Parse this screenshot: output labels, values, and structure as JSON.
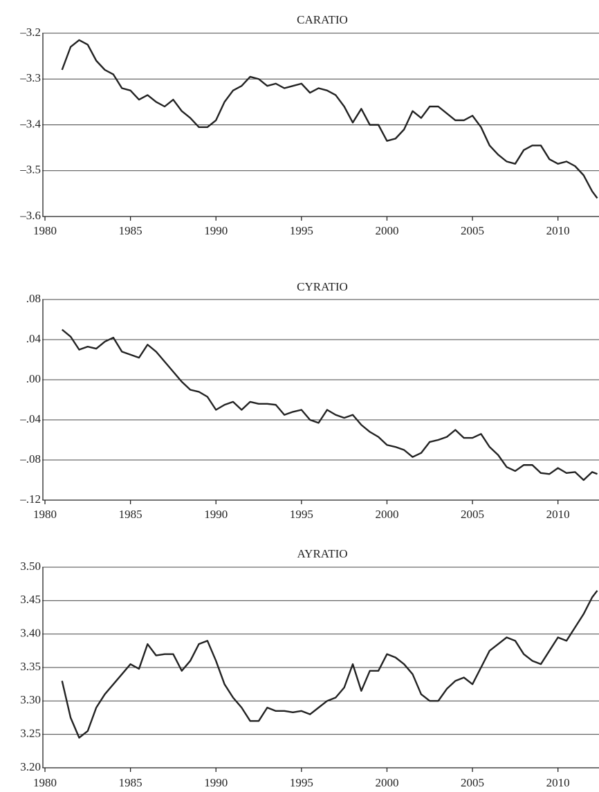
{
  "chart_data": [
    {
      "type": "line",
      "title": "CARATIO",
      "x": [
        1981,
        1981.5,
        1982,
        1982.5,
        1983,
        1983.5,
        1984,
        1984.5,
        1985,
        1985.5,
        1986,
        1986.5,
        1987,
        1987.5,
        1988,
        1988.5,
        1989,
        1989.5,
        1990,
        1990.5,
        1991,
        1991.5,
        1992,
        1992.5,
        1993,
        1993.5,
        1994,
        1994.5,
        1995,
        1995.5,
        1996,
        1996.5,
        1997,
        1997.5,
        1998,
        1998.5,
        1999,
        1999.5,
        2000,
        2000.5,
        2001,
        2001.5,
        2002,
        2002.5,
        2003,
        2003.5,
        2004,
        2004.5,
        2005,
        2005.5,
        2006,
        2006.5,
        2007,
        2007.5,
        2008,
        2008.5,
        2009,
        2009.5,
        2010,
        2010.5,
        2011,
        2011.5,
        2012,
        2012.3
      ],
      "values": [
        -3.28,
        -3.23,
        -3.215,
        -3.225,
        -3.26,
        -3.28,
        -3.29,
        -3.32,
        -3.325,
        -3.345,
        -3.335,
        -3.35,
        -3.36,
        -3.345,
        -3.37,
        -3.385,
        -3.405,
        -3.405,
        -3.39,
        -3.35,
        -3.325,
        -3.315,
        -3.295,
        -3.3,
        -3.315,
        -3.31,
        -3.32,
        -3.315,
        -3.31,
        -3.33,
        -3.32,
        -3.325,
        -3.335,
        -3.36,
        -3.395,
        -3.365,
        -3.4,
        -3.4,
        -3.435,
        -3.43,
        -3.41,
        -3.37,
        -3.385,
        -3.36,
        -3.36,
        -3.375,
        -3.39,
        -3.39,
        -3.38,
        -3.405,
        -3.445,
        -3.465,
        -3.48,
        -3.485,
        -3.455,
        -3.445,
        -3.445,
        -3.475,
        -3.485,
        -3.48,
        -3.49,
        -3.51,
        -3.545,
        -3.56
      ],
      "color": "#222222",
      "xlim": [
        1980,
        2012.4
      ],
      "xticks": [
        1980,
        1985,
        1990,
        1995,
        2000,
        2005,
        2010
      ],
      "ylim": [
        -3.6,
        -3.2
      ],
      "yticks": [
        {
          "value": -3.6,
          "label": "–3.6"
        },
        {
          "value": -3.5,
          "label": "–3.5"
        },
        {
          "value": -3.4,
          "label": "–3.4"
        },
        {
          "value": -3.3,
          "label": "–3.3"
        },
        {
          "value": -3.2,
          "label": "–3.2"
        }
      ],
      "grid": true
    },
    {
      "type": "line",
      "title": "CYRATIO",
      "x": [
        1981,
        1981.5,
        1982,
        1982.5,
        1983,
        1983.5,
        1984,
        1984.5,
        1985,
        1985.5,
        1986,
        1986.5,
        1987,
        1987.5,
        1988,
        1988.5,
        1989,
        1989.5,
        1990,
        1990.5,
        1991,
        1991.5,
        1992,
        1992.5,
        1993,
        1993.5,
        1994,
        1994.5,
        1995,
        1995.5,
        1996,
        1996.5,
        1997,
        1997.5,
        1998,
        1998.5,
        1999,
        1999.5,
        2000,
        2000.5,
        2001,
        2001.5,
        2002,
        2002.5,
        2003,
        2003.5,
        2004,
        2004.5,
        2005,
        2005.5,
        2006,
        2006.5,
        2007,
        2007.5,
        2008,
        2008.5,
        2009,
        2009.5,
        2010,
        2010.5,
        2011,
        2011.5,
        2012,
        2012.3
      ],
      "values": [
        0.05,
        0.043,
        0.03,
        0.033,
        0.031,
        0.038,
        0.042,
        0.028,
        0.025,
        0.022,
        0.035,
        0.028,
        0.018,
        0.008,
        -0.002,
        -0.01,
        -0.012,
        -0.017,
        -0.03,
        -0.025,
        -0.022,
        -0.03,
        -0.022,
        -0.024,
        -0.024,
        -0.025,
        -0.035,
        -0.032,
        -0.03,
        -0.04,
        -0.043,
        -0.03,
        -0.035,
        -0.038,
        -0.035,
        -0.045,
        -0.052,
        -0.057,
        -0.065,
        -0.067,
        -0.07,
        -0.077,
        -0.073,
        -0.062,
        -0.06,
        -0.057,
        -0.05,
        -0.058,
        -0.058,
        -0.054,
        -0.067,
        -0.075,
        -0.087,
        -0.091,
        -0.085,
        -0.085,
        -0.093,
        -0.094,
        -0.088,
        -0.093,
        -0.092,
        -0.1,
        -0.092,
        -0.094
      ],
      "color": "#222222",
      "xlim": [
        1980,
        2012.4
      ],
      "xticks": [
        1980,
        1985,
        1990,
        1995,
        2000,
        2005,
        2010
      ],
      "ylim": [
        -0.12,
        0.08
      ],
      "yticks": [
        {
          "value": -0.12,
          "label": "–.12"
        },
        {
          "value": -0.08,
          "label": "–.08"
        },
        {
          "value": -0.04,
          "label": "–.04"
        },
        {
          "value": 0,
          "label": ".00"
        },
        {
          "value": 0.04,
          "label": ".04"
        },
        {
          "value": 0.08,
          "label": ".08"
        }
      ],
      "grid": true
    },
    {
      "type": "line",
      "title": "AYRATIO",
      "x": [
        1981,
        1981.5,
        1982,
        1982.5,
        1983,
        1983.5,
        1984,
        1984.5,
        1985,
        1985.5,
        1986,
        1986.5,
        1987,
        1987.5,
        1988,
        1988.5,
        1989,
        1989.5,
        1990,
        1990.5,
        1991,
        1991.5,
        1992,
        1992.5,
        1993,
        1993.5,
        1994,
        1994.5,
        1995,
        1995.5,
        1996,
        1996.5,
        1997,
        1997.5,
        1998,
        1998.5,
        1999,
        1999.5,
        2000,
        2000.5,
        2001,
        2001.5,
        2002,
        2002.5,
        2003,
        2003.5,
        2004,
        2004.5,
        2005,
        2005.5,
        2006,
        2006.5,
        2007,
        2007.5,
        2008,
        2008.5,
        2009,
        2009.5,
        2010,
        2010.5,
        2011,
        2011.5,
        2012,
        2012.3
      ],
      "values": [
        3.33,
        3.275,
        3.245,
        3.255,
        3.29,
        3.31,
        3.325,
        3.34,
        3.355,
        3.348,
        3.385,
        3.368,
        3.37,
        3.37,
        3.345,
        3.36,
        3.385,
        3.39,
        3.36,
        3.325,
        3.305,
        3.29,
        3.27,
        3.27,
        3.29,
        3.285,
        3.285,
        3.283,
        3.285,
        3.28,
        3.29,
        3.3,
        3.305,
        3.32,
        3.355,
        3.315,
        3.345,
        3.345,
        3.37,
        3.365,
        3.355,
        3.34,
        3.31,
        3.3,
        3.3,
        3.318,
        3.33,
        3.335,
        3.325,
        3.35,
        3.375,
        3.385,
        3.395,
        3.39,
        3.37,
        3.36,
        3.355,
        3.375,
        3.395,
        3.39,
        3.41,
        3.43,
        3.455,
        3.465
      ],
      "color": "#222222",
      "xlim": [
        1980,
        2012.4
      ],
      "xticks": [
        1980,
        1985,
        1990,
        1995,
        2000,
        2005,
        2010
      ],
      "ylim": [
        3.2,
        3.5
      ],
      "yticks": [
        {
          "value": 3.2,
          "label": "3.20"
        },
        {
          "value": 3.25,
          "label": "3.25"
        },
        {
          "value": 3.3,
          "label": "3.30"
        },
        3.35,
        {
          "value": 3.4,
          "label": "3.40"
        },
        3.45,
        {
          "value": 3.5,
          "label": "3.50"
        }
      ],
      "grid": true
    }
  ]
}
